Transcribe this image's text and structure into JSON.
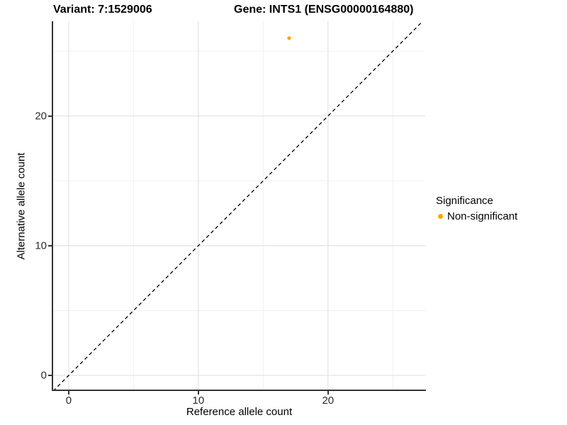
{
  "figure": {
    "title_left": "Variant: 7:1529006",
    "title_right": "Gene: INTS1 (ENSG00000164880)"
  },
  "chart_data": {
    "type": "scatter",
    "title": "Variant: 7:1529006    Gene: INTS1 (ENSG00000164880)",
    "xlabel": "Reference allele count",
    "ylabel": "Alternative allele count",
    "xlim": [
      -1.2,
      27.5
    ],
    "ylim": [
      -1.2,
      27.3
    ],
    "x_ticks": [
      0,
      10,
      20
    ],
    "y_ticks": [
      0,
      10,
      20
    ],
    "x_minor_ticks": [
      5,
      15,
      25
    ],
    "y_minor_ticks": [
      5,
      15,
      25
    ],
    "grid": "major+minor",
    "series": [
      {
        "name": "Non-significant",
        "color": "#FFA500",
        "points": [
          {
            "x": 17,
            "y": 26
          }
        ]
      }
    ],
    "reference_line": {
      "type": "abline",
      "slope": 1,
      "intercept": 0,
      "linestyle": "dashed",
      "color": "#000000"
    },
    "legend": {
      "title": "Significance",
      "position": "right",
      "entries": [
        {
          "label": "Non-significant",
          "color": "#FFA500"
        }
      ]
    }
  },
  "colors": {
    "axis_line": "#333333",
    "grid_major": "#e3e3e3",
    "grid_minor": "#f1f1f1",
    "point": "#FFA500",
    "dashed_line": "#000000"
  }
}
